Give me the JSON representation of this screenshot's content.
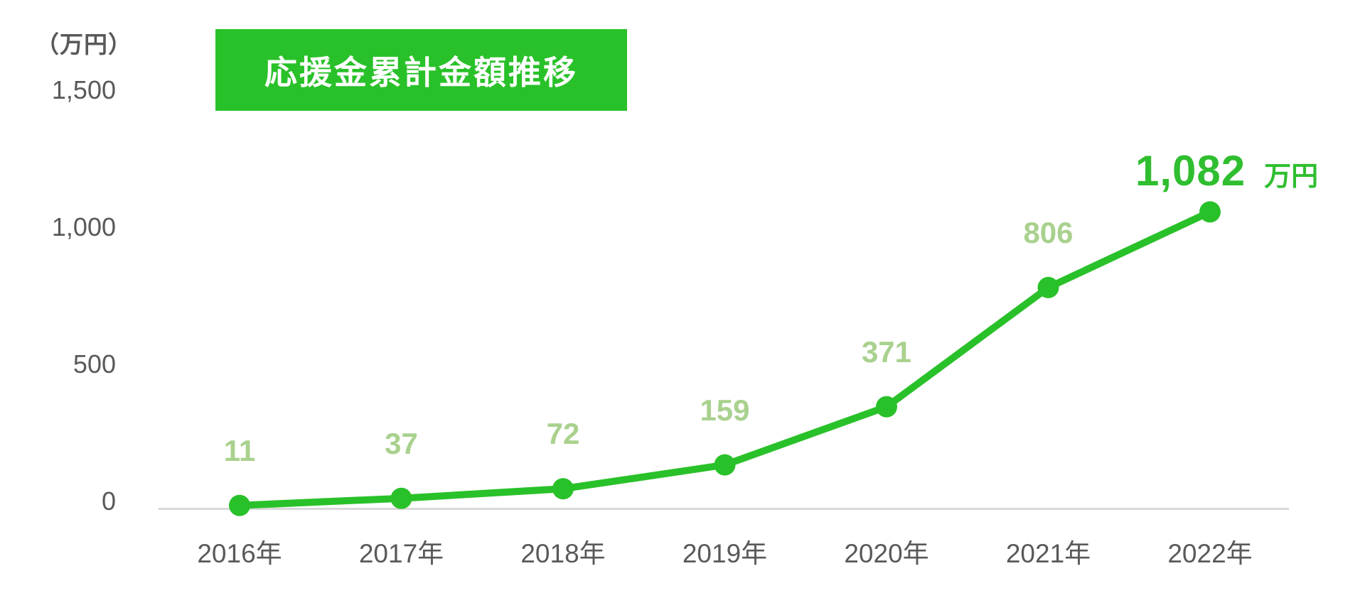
{
  "page": {
    "background": "#ffffff"
  },
  "header": {
    "title": "応援金累計金額推移",
    "banner_bg": "#29C129",
    "title_color": "#ffffff"
  },
  "axis_unit_label": "（万円）",
  "chart_data": {
    "type": "line",
    "title": "応援金累計金額推移",
    "ylabel": "（万円）",
    "categories": [
      "2016年",
      "2017年",
      "2018年",
      "2019年",
      "2020年",
      "2021年",
      "2022年"
    ],
    "series": [
      {
        "name": "応援金累計金額",
        "values": [
          11,
          37,
          72,
          159,
          371,
          806,
          1082
        ]
      }
    ],
    "point_labels": [
      "11",
      "37",
      "72",
      "159",
      "371",
      "806",
      "1,082"
    ],
    "final_value_label": "1,082",
    "final_value_unit": "万円",
    "y_ticks": [
      {
        "value": 0,
        "label": "0"
      },
      {
        "value": 500,
        "label": "500"
      },
      {
        "value": 1000,
        "label": "1,000"
      },
      {
        "value": 1500,
        "label": "1,500"
      }
    ],
    "ylim": [
      0,
      1500
    ],
    "grid": false,
    "legend": false,
    "colors": {
      "line": "#29C129",
      "marker": "#29C129",
      "point_label": "#A9D18E",
      "final_label": "#2FBE2F",
      "axis_text": "#595959",
      "axis_line": "#D9D9D9"
    }
  }
}
